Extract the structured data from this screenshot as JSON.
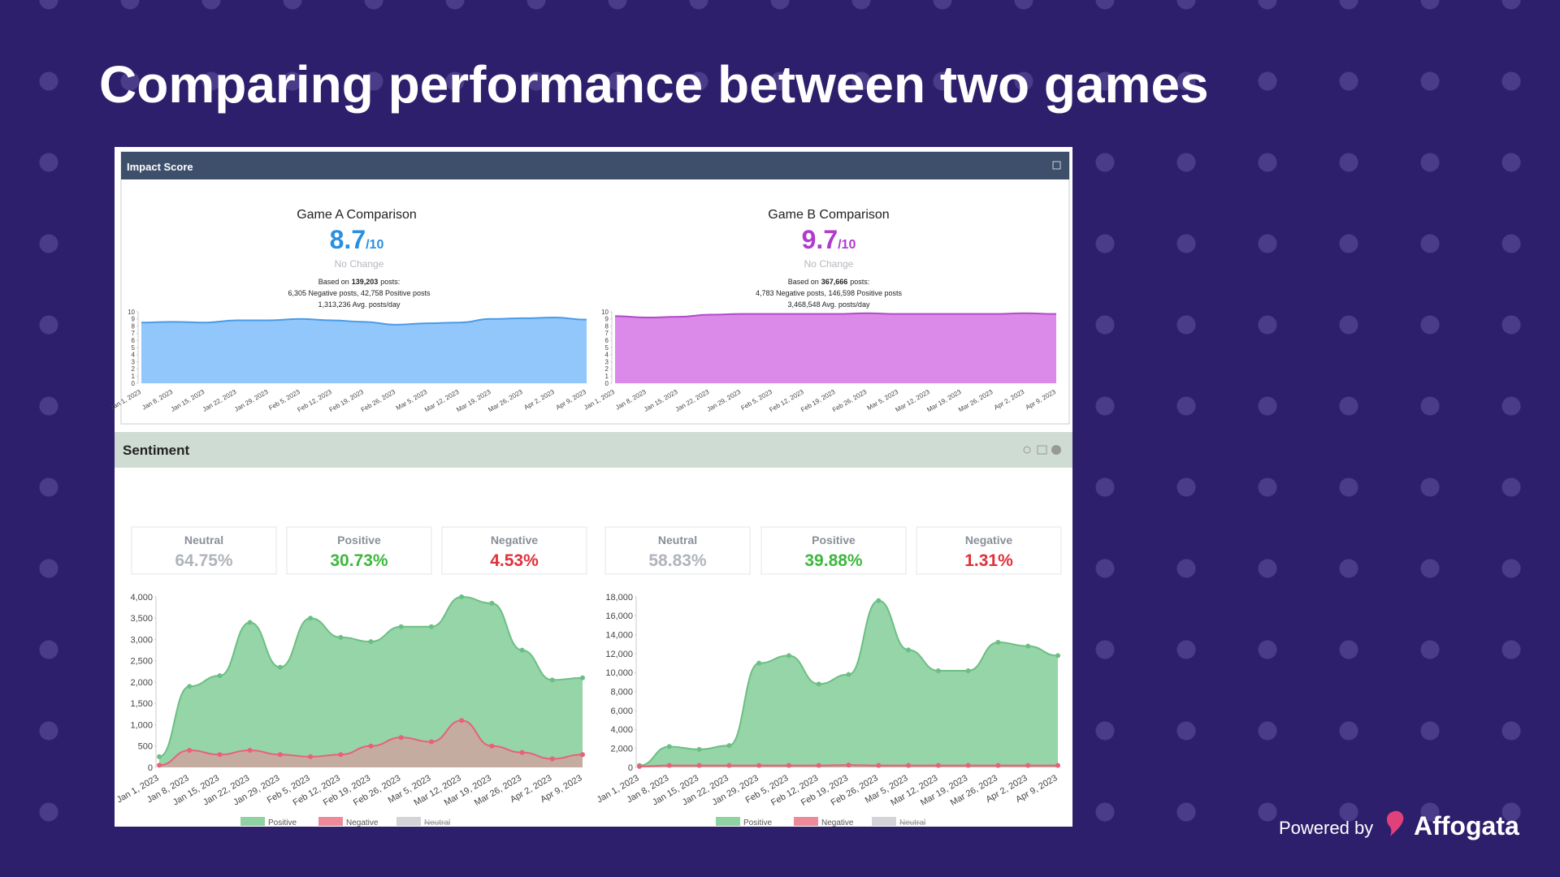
{
  "title": "Comparing performance between two games",
  "impact": {
    "header": "Impact Score",
    "games": [
      {
        "score": "8.7",
        "out_of": "/10",
        "change": "No Change",
        "based_on": "Based on",
        "posts": "139,203",
        "posts_suffix": "posts:",
        "breakdown": "6,305 Negative posts, 42,758 Positive posts",
        "avg": "1,313,236 Avg. posts/day"
      },
      {
        "score": "9.7",
        "out_of": "/10",
        "change": "No Change",
        "based_on": "Based on",
        "posts": "367,666",
        "posts_suffix": "posts:",
        "breakdown": "4,783 Negative posts, 146,598 Positive posts",
        "avg": "3,468,548 Avg. posts/day"
      }
    ]
  },
  "sentiment": {
    "header": "Sentiment",
    "cards": [
      [
        {
          "label": "Neutral",
          "value": "64.75%"
        },
        {
          "label": "Positive",
          "value": "30.73%"
        },
        {
          "label": "Negative",
          "value": "4.53%"
        }
      ],
      [
        {
          "label": "Neutral",
          "value": "58.83%"
        },
        {
          "label": "Positive",
          "value": "39.88%"
        },
        {
          "label": "Negative",
          "value": "1.31%"
        }
      ]
    ]
  },
  "footer": {
    "powered": "Powered by",
    "brand": "Affogata"
  },
  "chart_data": [
    {
      "type": "area",
      "title": "Game A Comparison",
      "categories": [
        "Jan 1, 2023",
        "Jan 8, 2023",
        "Jan 15, 2023",
        "Jan 22, 2023",
        "Jan 29, 2023",
        "Feb 5, 2023",
        "Feb 12, 2023",
        "Feb 19, 2023",
        "Feb 26, 2023",
        "Mar 5, 2023",
        "Mar 12, 2023",
        "Mar 19, 2023",
        "Mar 26, 2023",
        "Apr 2, 2023",
        "Apr 9, 2023"
      ],
      "series": [
        {
          "color": "#8cc4fb",
          "values": [
            8.5,
            8.6,
            8.5,
            8.8,
            8.8,
            9.0,
            8.8,
            8.6,
            8.2,
            8.4,
            8.5,
            9.0,
            9.1,
            9.2,
            8.9
          ]
        }
      ],
      "ylim": [
        0,
        10
      ],
      "yticks": [
        0,
        1,
        2,
        3,
        4,
        5,
        6,
        7,
        8,
        9,
        10
      ]
    },
    {
      "type": "area",
      "title": "Game B Comparison",
      "categories": [
        "Jan 1, 2023",
        "Jan 8, 2023",
        "Jan 15, 2023",
        "Jan 22, 2023",
        "Jan 29, 2023",
        "Feb 5, 2023",
        "Feb 12, 2023",
        "Feb 19, 2023",
        "Feb 26, 2023",
        "Mar 5, 2023",
        "Mar 12, 2023",
        "Mar 19, 2023",
        "Mar 26, 2023",
        "Apr 2, 2023",
        "Apr 9, 2023"
      ],
      "series": [
        {
          "color": "#da84e8",
          "values": [
            9.4,
            9.2,
            9.3,
            9.6,
            9.7,
            9.7,
            9.7,
            9.7,
            9.8,
            9.7,
            9.7,
            9.7,
            9.7,
            9.8,
            9.7
          ]
        }
      ],
      "ylim": [
        0,
        10
      ],
      "yticks": [
        0,
        1,
        2,
        3,
        4,
        5,
        6,
        7,
        8,
        9,
        10
      ]
    },
    {
      "type": "area",
      "categories": [
        "Jan 1, 2023",
        "Jan 8, 2023",
        "Jan 15, 2023",
        "Jan 22, 2023",
        "Jan 29, 2023",
        "Feb 5, 2023",
        "Feb 12, 2023",
        "Feb 19, 2023",
        "Feb 26, 2023",
        "Mar 5, 2023",
        "Mar 12, 2023",
        "Mar 19, 2023",
        "Mar 26, 2023",
        "Apr 2, 2023",
        "Apr 9, 2023"
      ],
      "series": [
        {
          "name": "Positive",
          "color": "#8fd3a2",
          "values": [
            250,
            1900,
            2150,
            3400,
            2350,
            3500,
            3050,
            2950,
            3300,
            3300,
            4000,
            3850,
            2750,
            2050,
            2100
          ]
        },
        {
          "name": "Negative",
          "color": "#ec8a9a",
          "values": [
            50,
            400,
            300,
            400,
            300,
            250,
            300,
            500,
            700,
            600,
            1100,
            500,
            350,
            200,
            300
          ]
        },
        {
          "name": "Neutral",
          "color": "#d3d3d8",
          "hidden": true
        }
      ],
      "ylim": [
        0,
        4000
      ],
      "yticks": [
        0,
        500,
        {
          "value": 1000,
          "label": "1,000"
        },
        {
          "value": 1500,
          "label": "1,500"
        },
        {
          "value": 2000,
          "label": "2,000"
        },
        {
          "value": 2500,
          "label": "2,500"
        },
        {
          "value": 3000,
          "label": "3,000"
        },
        {
          "value": 3500,
          "label": "3,500"
        },
        {
          "value": 4000,
          "label": "4,000"
        }
      ]
    },
    {
      "type": "area",
      "categories": [
        "Jan 1, 2023",
        "Jan 8, 2023",
        "Jan 15, 2023",
        "Jan 22, 2023",
        "Jan 29, 2023",
        "Feb 5, 2023",
        "Feb 12, 2023",
        "Feb 19, 2023",
        "Feb 26, 2023",
        "Mar 5, 2023",
        "Mar 12, 2023",
        "Mar 19, 2023",
        "Mar 26, 2023",
        "Apr 2, 2023",
        "Apr 9, 2023"
      ],
      "series": [
        {
          "name": "Positive",
          "color": "#8fd3a2",
          "values": [
            200,
            2200,
            1900,
            2300,
            11000,
            11800,
            8800,
            9800,
            17600,
            12400,
            10200,
            10200,
            13200,
            12800,
            11800
          ]
        },
        {
          "name": "Negative",
          "color": "#ec8a9a",
          "values": [
            100,
            200,
            200,
            200,
            200,
            200,
            200,
            250,
            200,
            200,
            200,
            200,
            200,
            200,
            200
          ]
        },
        {
          "name": "Neutral",
          "color": "#d3d3d8",
          "hidden": true
        }
      ],
      "ylim": [
        0,
        18000
      ],
      "yticks": [
        0,
        {
          "value": 2000,
          "label": "2,000"
        },
        {
          "value": 4000,
          "label": "4,000"
        },
        {
          "value": 6000,
          "label": "6,000"
        },
        {
          "value": 8000,
          "label": "8,000"
        },
        {
          "value": 10000,
          "label": "10,000"
        },
        {
          "value": 12000,
          "label": "12,000"
        },
        {
          "value": 14000,
          "label": "14,000"
        },
        {
          "value": 16000,
          "label": "16,000"
        },
        {
          "value": 18000,
          "label": "18,000"
        }
      ]
    }
  ]
}
